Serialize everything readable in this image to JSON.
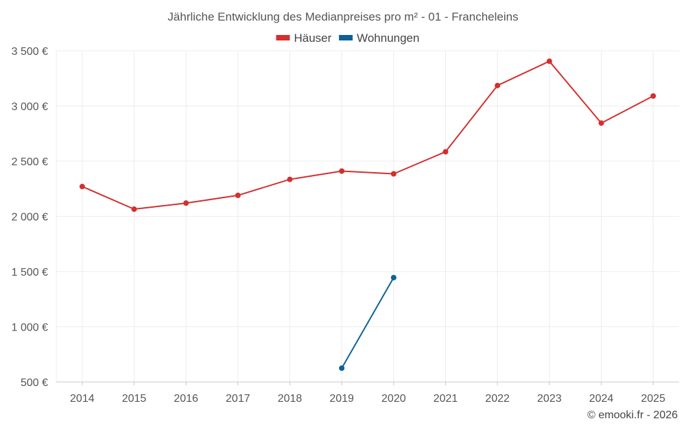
{
  "chart_data": {
    "type": "line",
    "title": "Jährliche Entwicklung des Medianpreises pro m² - 01 - Francheleins",
    "xlabel": "",
    "ylabel": "",
    "categories": [
      "2014",
      "2015",
      "2016",
      "2017",
      "2018",
      "2019",
      "2020",
      "2021",
      "2022",
      "2023",
      "2024",
      "2025"
    ],
    "ylim": [
      500,
      3500
    ],
    "y_ticks": [
      500,
      1000,
      1500,
      2000,
      2500,
      3000,
      3500
    ],
    "y_tick_labels": [
      "500 €",
      "1 000 €",
      "1 500 €",
      "2 000 €",
      "2 500 €",
      "3 000 €",
      "3 500 €"
    ],
    "legend_position": "top-center",
    "grid": true,
    "series": [
      {
        "name": "Häuser",
        "color": "#d32f2f",
        "values": [
          2270,
          2065,
          2120,
          2190,
          2335,
          2410,
          2385,
          2585,
          3185,
          3405,
          2845,
          3090
        ]
      },
      {
        "name": "Wohnungen",
        "color": "#0d6197",
        "values": [
          null,
          null,
          null,
          null,
          null,
          625,
          1445,
          null,
          null,
          null,
          null,
          null
        ]
      }
    ]
  },
  "credit": "© emooki.fr - 2026"
}
